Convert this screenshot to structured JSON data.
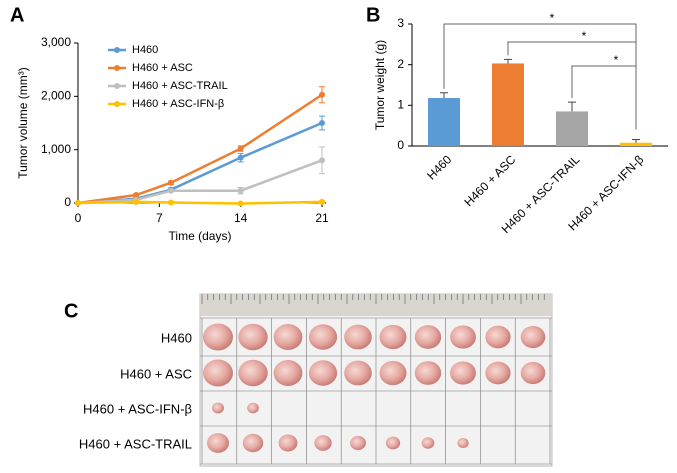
{
  "panels": [
    "A",
    "B",
    "C"
  ],
  "chart_data": [
    {
      "type": "line",
      "xlabel": "Time (days)",
      "ylabel": "Tumor volume (mm³)",
      "x": [
        0,
        5,
        8,
        14,
        21
      ],
      "xlim": [
        0,
        21
      ],
      "xticks": [
        0,
        7,
        14,
        21
      ],
      "ylim": [
        0,
        3000
      ],
      "yticks": [
        0,
        {
          "value": 1000,
          "label": "1,000"
        },
        {
          "value": 2000,
          "label": "2,000"
        },
        {
          "value": 3000,
          "label": "3,000"
        }
      ],
      "series": [
        {
          "name": "H460",
          "color": "#5b9bd5",
          "values": [
            0,
            80,
            250,
            850,
            1500
          ],
          "errors": [
            0,
            20,
            30,
            80,
            130
          ]
        },
        {
          "name": "H460 + ASC",
          "color": "#ed7d31",
          "values": [
            0,
            150,
            380,
            1020,
            2030
          ],
          "errors": [
            0,
            20,
            30,
            50,
            150
          ]
        },
        {
          "name": "H460 + ASC-TRAIL",
          "color": "#bfbfbf",
          "values": [
            0,
            60,
            230,
            230,
            800
          ],
          "errors": [
            0,
            10,
            20,
            60,
            250
          ]
        },
        {
          "name": "H460 + ASC-IFN-β",
          "color": "#ffc000",
          "values": [
            0,
            20,
            10,
            -10,
            20
          ],
          "errors": [
            0,
            10,
            10,
            10,
            20
          ]
        }
      ]
    },
    {
      "type": "bar",
      "ylabel": "Tumor weight (g)",
      "categories": [
        "H460",
        "H460 + ASC",
        "H460 + ASC-TRAIL",
        "H460 + ASC-IFN-β"
      ],
      "values": [
        1.18,
        2.03,
        0.85,
        0.08
      ],
      "errors": [
        0.13,
        0.1,
        0.23,
        0.08
      ],
      "colors": [
        "#5b9bd5",
        "#ed7d31",
        "#a5a5a5",
        "#ffc000"
      ],
      "ylim": [
        0,
        3
      ],
      "yticks": [
        0,
        1,
        2,
        3
      ],
      "annotations": [
        "*",
        "*",
        "*"
      ]
    }
  ],
  "photo": {
    "rows": [
      "H460",
      "H460 + ASC",
      "H460 + ASC-IFN-β",
      "H460 + ASC-TRAIL"
    ]
  }
}
